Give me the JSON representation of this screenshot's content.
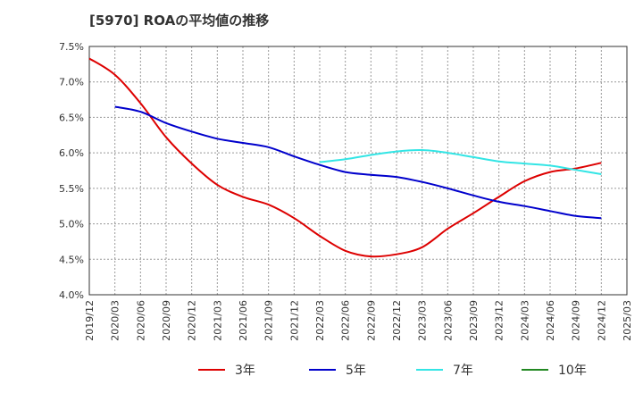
{
  "title": "[5970]  ROAの平均値の推移",
  "chart_data": {
    "type": "line",
    "title": "[5970]  ROAの平均値の推移",
    "x_ticks": [
      "2019/12",
      "2020/03",
      "2020/06",
      "2020/09",
      "2020/12",
      "2021/03",
      "2021/06",
      "2021/09",
      "2021/12",
      "2022/03",
      "2022/06",
      "2022/09",
      "2022/12",
      "2023/03",
      "2023/06",
      "2023/09",
      "2023/12",
      "2024/03",
      "2024/06",
      "2024/09",
      "2024/12",
      "2025/03"
    ],
    "y_ticks": [
      "4.0%",
      "4.5%",
      "5.0%",
      "5.5%",
      "6.0%",
      "6.5%",
      "7.0%",
      "7.5%"
    ],
    "ylim": [
      4.0,
      7.5
    ],
    "grid": true,
    "legend_position": "bottom",
    "series": [
      {
        "name": "3年",
        "color": "#dd0000",
        "points": [
          [
            "2019/12",
            7.33
          ],
          [
            "2020/03",
            7.1
          ],
          [
            "2020/06",
            6.7
          ],
          [
            "2020/09",
            6.22
          ],
          [
            "2020/12",
            5.85
          ],
          [
            "2021/03",
            5.55
          ],
          [
            "2021/06",
            5.38
          ],
          [
            "2021/09",
            5.27
          ],
          [
            "2021/12",
            5.08
          ],
          [
            "2022/03",
            4.83
          ],
          [
            "2022/06",
            4.62
          ],
          [
            "2022/09",
            4.54
          ],
          [
            "2022/12",
            4.57
          ],
          [
            "2023/03",
            4.67
          ],
          [
            "2023/06",
            4.93
          ],
          [
            "2023/09",
            5.15
          ],
          [
            "2023/12",
            5.38
          ],
          [
            "2024/03",
            5.6
          ],
          [
            "2024/06",
            5.73
          ],
          [
            "2024/09",
            5.78
          ],
          [
            "2024/12",
            5.86
          ]
        ]
      },
      {
        "name": "5年",
        "color": "#0000cc",
        "points": [
          [
            "2020/03",
            6.65
          ],
          [
            "2020/06",
            6.58
          ],
          [
            "2020/09",
            6.42
          ],
          [
            "2020/12",
            6.3
          ],
          [
            "2021/03",
            6.2
          ],
          [
            "2021/06",
            6.14
          ],
          [
            "2021/09",
            6.08
          ],
          [
            "2021/12",
            5.95
          ],
          [
            "2022/03",
            5.83
          ],
          [
            "2022/06",
            5.73
          ],
          [
            "2022/09",
            5.69
          ],
          [
            "2022/12",
            5.66
          ],
          [
            "2023/03",
            5.59
          ],
          [
            "2023/06",
            5.5
          ],
          [
            "2023/09",
            5.4
          ],
          [
            "2023/12",
            5.31
          ],
          [
            "2024/03",
            5.25
          ],
          [
            "2024/06",
            5.18
          ],
          [
            "2024/09",
            5.11
          ],
          [
            "2024/12",
            5.08
          ]
        ]
      },
      {
        "name": "7年",
        "color": "#33e5e5",
        "points": [
          [
            "2022/03",
            5.87
          ],
          [
            "2022/06",
            5.91
          ],
          [
            "2022/09",
            5.97
          ],
          [
            "2022/12",
            6.02
          ],
          [
            "2023/03",
            6.04
          ],
          [
            "2023/06",
            6.0
          ],
          [
            "2023/09",
            5.94
          ],
          [
            "2023/12",
            5.88
          ],
          [
            "2024/03",
            5.85
          ],
          [
            "2024/06",
            5.82
          ],
          [
            "2024/09",
            5.76
          ],
          [
            "2024/12",
            5.7
          ]
        ]
      },
      {
        "name": "10年",
        "color": "#228822",
        "points": []
      }
    ]
  }
}
